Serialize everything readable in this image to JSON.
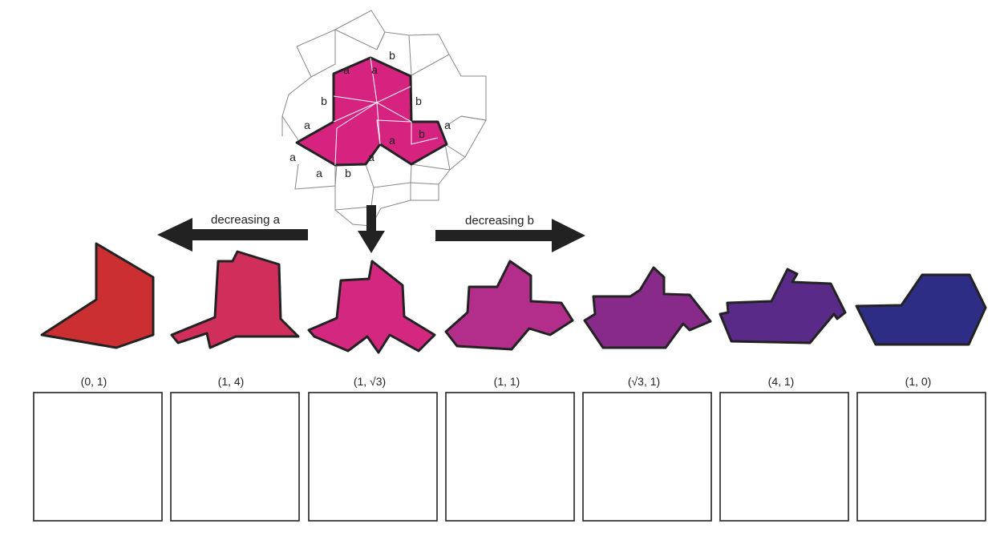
{
  "colors": {
    "background": "#ffffff",
    "stroke": "#222222",
    "tile_lines": "#888888",
    "hat_top": "#d6237f",
    "arrow": "#222222"
  },
  "top_diagram": {
    "edge_labels": [
      "a",
      "b",
      "a",
      "b",
      "b",
      "a",
      "a",
      "b",
      "a",
      "a",
      "a",
      "a",
      "b"
    ]
  },
  "arrows": {
    "left_label": "decreasing a",
    "right_label": "decreasing b"
  },
  "shapes": [
    {
      "param": "(0, 1)",
      "color": "#cc2f31"
    },
    {
      "param": "(1, 4)",
      "color": "#d12f5b"
    },
    {
      "param": "(1, √3)",
      "color": "#d42880"
    },
    {
      "param": "(1, 1)",
      "color": "#b22e8a"
    },
    {
      "param": "(√3, 1)",
      "color": "#872a8a"
    },
    {
      "param": "(4, 1)",
      "color": "#5a2a88"
    },
    {
      "param": "(1, 0)",
      "color": "#2e2d86"
    }
  ]
}
